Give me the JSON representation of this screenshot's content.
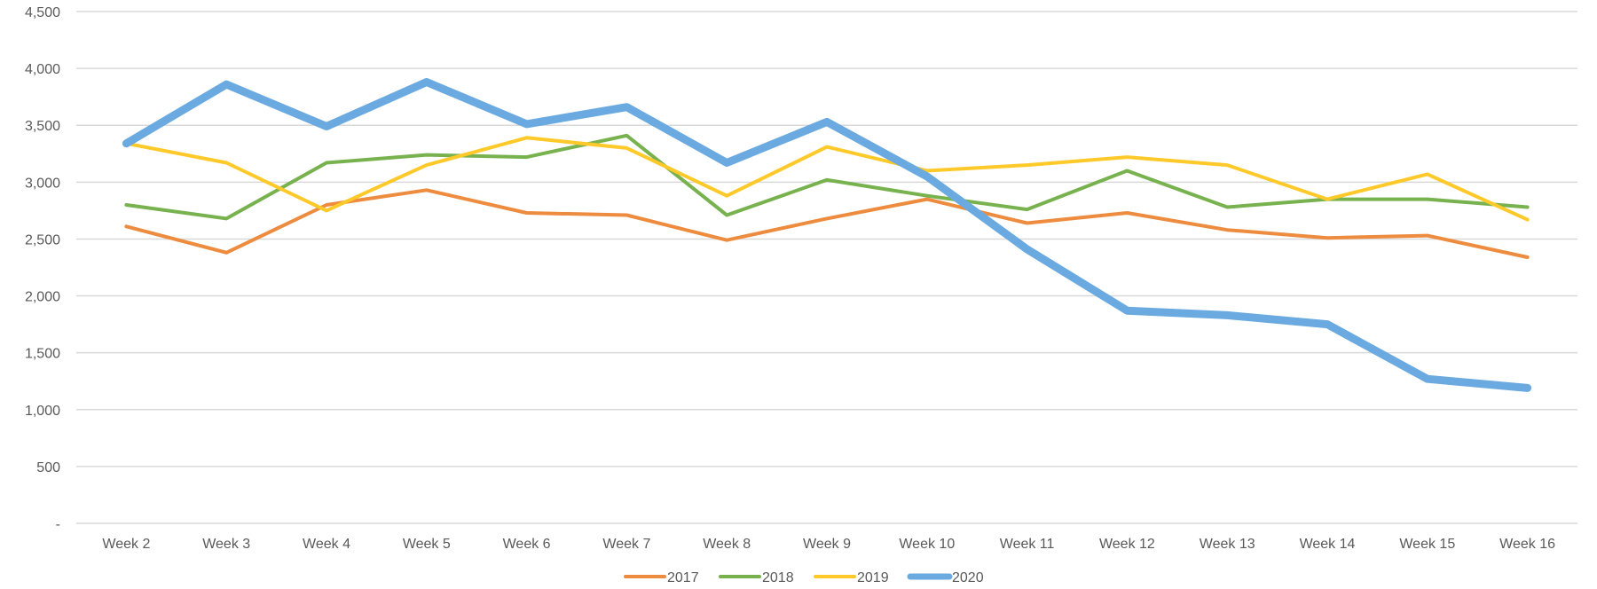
{
  "chart_data": {
    "type": "line",
    "title": "",
    "xlabel": "",
    "ylabel": "",
    "categories": [
      "Week 2",
      "Week 3",
      "Week 4",
      "Week 5",
      "Week 6",
      "Week 7",
      "Week 8",
      "Week 9",
      "Week 10",
      "Week 11",
      "Week 12",
      "Week 13",
      "Week 14",
      "Week 15",
      "Week 16"
    ],
    "ylim": [
      0,
      4500
    ],
    "y_ticks": [
      {
        "value": 0,
        "label": "-"
      },
      {
        "value": 500,
        "label": "500"
      },
      {
        "value": 1000,
        "label": "1,000"
      },
      {
        "value": 1500,
        "label": "1,500"
      },
      {
        "value": 2000,
        "label": "2,000"
      },
      {
        "value": 2500,
        "label": "2,500"
      },
      {
        "value": 3000,
        "label": "3,000"
      },
      {
        "value": 3500,
        "label": "3,500"
      },
      {
        "value": 4000,
        "label": "4,000"
      },
      {
        "value": 4500,
        "label": "4,500"
      }
    ],
    "grid": true,
    "legend_position": "bottom",
    "series": [
      {
        "name": "2017",
        "color": "#ED8B3F",
        "weight": "normal",
        "values": [
          2610,
          2380,
          2800,
          2930,
          2730,
          2710,
          2490,
          2680,
          2850,
          2640,
          2730,
          2580,
          2510,
          2530,
          2340
        ]
      },
      {
        "name": "2018",
        "color": "#77B24E",
        "weight": "normal",
        "values": [
          2800,
          2680,
          3170,
          3240,
          3220,
          3410,
          2710,
          3020,
          2880,
          2760,
          3100,
          2780,
          2850,
          2850,
          2780
        ]
      },
      {
        "name": "2019",
        "color": "#FFC92A",
        "weight": "normal",
        "values": [
          3340,
          3170,
          2750,
          3150,
          3390,
          3300,
          2880,
          3310,
          3100,
          3150,
          3220,
          3150,
          2850,
          3070,
          2670
        ]
      },
      {
        "name": "2020",
        "color": "#6AAAE0",
        "weight": "bold",
        "values": [
          3340,
          3860,
          3490,
          3880,
          3510,
          3660,
          3170,
          3530,
          3050,
          2410,
          1870,
          1830,
          1750,
          1270,
          1190
        ]
      }
    ]
  }
}
